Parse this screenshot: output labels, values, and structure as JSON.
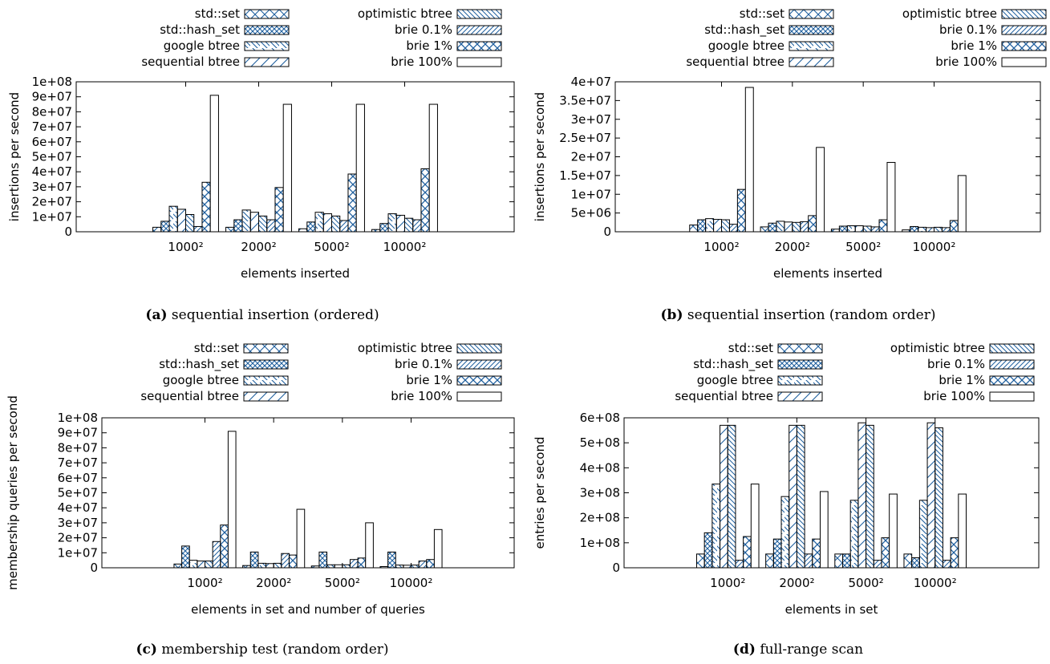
{
  "series_names": [
    "std::set",
    "std::hash_set",
    "google btree",
    "sequential btree",
    "optimistic btree",
    "brie 0.1%",
    "brie 1%",
    "brie 100%"
  ],
  "chart_data": [
    {
      "type": "bar",
      "caption_label": "(a)",
      "caption_text": "sequential insertion (ordered)",
      "xlabel": "elements inserted",
      "ylabel": "insertions per second",
      "categories": [
        "1000²",
        "2000²",
        "5000²",
        "10000²"
      ],
      "ylim": [
        0,
        100000000
      ],
      "yticks": [
        0,
        10000000,
        20000000,
        30000000,
        40000000,
        50000000,
        60000000,
        70000000,
        80000000,
        90000000,
        100000000
      ],
      "ytick_labels": [
        "0",
        "1e+07",
        "2e+07",
        "3e+07",
        "4e+07",
        "5e+07",
        "6e+07",
        "7e+07",
        "8e+07",
        "9e+07",
        "1e+08"
      ],
      "series": [
        {
          "name": "std::set",
          "values": [
            3000000,
            3000000,
            2000000,
            1500000
          ]
        },
        {
          "name": "std::hash_set",
          "values": [
            7000000,
            8000000,
            6500000,
            5500000
          ]
        },
        {
          "name": "google btree",
          "values": [
            17000000,
            14500000,
            13000000,
            12000000
          ]
        },
        {
          "name": "sequential btree",
          "values": [
            15000000,
            13000000,
            12000000,
            11000000
          ]
        },
        {
          "name": "optimistic btree",
          "values": [
            11500000,
            10500000,
            10500000,
            9000000
          ]
        },
        {
          "name": "brie 0.1%",
          "values": [
            3500000,
            8000000,
            7500000,
            8000000
          ]
        },
        {
          "name": "brie 1%",
          "values": [
            33000000,
            29500000,
            38500000,
            42000000
          ]
        },
        {
          "name": "brie 100%",
          "values": [
            91000000,
            85000000,
            85000000,
            85000000
          ]
        }
      ]
    },
    {
      "type": "bar",
      "caption_label": "(b)",
      "caption_text": "sequential insertion (random order)",
      "xlabel": "elements inserted",
      "ylabel": "insertions per second",
      "categories": [
        "1000²",
        "2000²",
        "5000²",
        "10000²"
      ],
      "ylim": [
        0,
        40000000
      ],
      "yticks": [
        0,
        5000000,
        10000000,
        15000000,
        20000000,
        25000000,
        30000000,
        35000000,
        40000000
      ],
      "ytick_labels": [
        "0",
        "5e+06",
        "1e+07",
        "1.5e+07",
        "2e+07",
        "2.5e+07",
        "3e+07",
        "3.5e+07",
        "4e+07"
      ],
      "series": [
        {
          "name": "std::set",
          "values": [
            1800000,
            1300000,
            700000,
            500000
          ]
        },
        {
          "name": "std::hash_set",
          "values": [
            3200000,
            2300000,
            1500000,
            1400000
          ]
        },
        {
          "name": "google btree",
          "values": [
            3500000,
            2800000,
            1600000,
            1200000
          ]
        },
        {
          "name": "sequential btree",
          "values": [
            3300000,
            2600000,
            1600000,
            1100000
          ]
        },
        {
          "name": "optimistic btree",
          "values": [
            3200000,
            2500000,
            1500000,
            1200000
          ]
        },
        {
          "name": "brie 0.1%",
          "values": [
            2000000,
            2700000,
            1300000,
            1100000
          ]
        },
        {
          "name": "brie 1%",
          "values": [
            11300000,
            4300000,
            3200000,
            3000000
          ]
        },
        {
          "name": "brie 100%",
          "values": [
            38500000,
            22500000,
            18500000,
            15000000
          ]
        }
      ]
    },
    {
      "type": "bar",
      "caption_label": "(c)",
      "caption_text": "membership test (random order)",
      "xlabel": "elements in set and number of queries",
      "ylabel": "membership queries per second",
      "categories": [
        "1000²",
        "2000²",
        "5000²",
        "10000²"
      ],
      "ylim": [
        0,
        100000000
      ],
      "yticks": [
        0,
        10000000,
        20000000,
        30000000,
        40000000,
        50000000,
        60000000,
        70000000,
        80000000,
        90000000,
        100000000
      ],
      "ytick_labels": [
        "0",
        "1e+07",
        "2e+07",
        "3e+07",
        "4e+07",
        "5e+07",
        "6e+07",
        "7e+07",
        "8e+07",
        "9e+07",
        "1e+08"
      ],
      "series": [
        {
          "name": "std::set",
          "values": [
            2500000,
            1500000,
            1200000,
            800000
          ]
        },
        {
          "name": "std::hash_set",
          "values": [
            14500000,
            10500000,
            10500000,
            10500000
          ]
        },
        {
          "name": "google btree",
          "values": [
            5000000,
            3000000,
            2000000,
            1800000
          ]
        },
        {
          "name": "sequential btree",
          "values": [
            4500000,
            2800000,
            2000000,
            1700000
          ]
        },
        {
          "name": "optimistic btree",
          "values": [
            4500000,
            3000000,
            2000000,
            1800000
          ]
        },
        {
          "name": "brie 0.1%",
          "values": [
            17500000,
            9500000,
            5500000,
            4500000
          ]
        },
        {
          "name": "brie 1%",
          "values": [
            28500000,
            8500000,
            6500000,
            5500000
          ]
        },
        {
          "name": "brie 100%",
          "values": [
            91000000,
            39000000,
            30000000,
            25500000
          ]
        }
      ]
    },
    {
      "type": "bar",
      "caption_label": "(d)",
      "caption_text": "full-range scan",
      "xlabel": "elements in set",
      "ylabel": "entries per second",
      "categories": [
        "1000²",
        "2000²",
        "5000²",
        "10000²"
      ],
      "ylim": [
        0,
        600000000
      ],
      "yticks": [
        0,
        100000000,
        200000000,
        300000000,
        400000000,
        500000000,
        600000000
      ],
      "ytick_labels": [
        "0",
        "1e+08",
        "2e+08",
        "3e+08",
        "4e+08",
        "5e+08",
        "6e+08"
      ],
      "series": [
        {
          "name": "std::set",
          "values": [
            55000000,
            55000000,
            55000000,
            55000000
          ]
        },
        {
          "name": "std::hash_set",
          "values": [
            140000000,
            115000000,
            55000000,
            40000000
          ]
        },
        {
          "name": "google btree",
          "values": [
            335000000,
            285000000,
            270000000,
            270000000
          ]
        },
        {
          "name": "sequential btree",
          "values": [
            570000000,
            570000000,
            580000000,
            580000000
          ]
        },
        {
          "name": "optimistic btree",
          "values": [
            570000000,
            570000000,
            570000000,
            560000000
          ]
        },
        {
          "name": "brie 0.1%",
          "values": [
            30000000,
            55000000,
            30000000,
            30000000
          ]
        },
        {
          "name": "brie 1%",
          "values": [
            125000000,
            115000000,
            120000000,
            120000000
          ]
        },
        {
          "name": "brie 100%",
          "values": [
            335000000,
            305000000,
            295000000,
            295000000
          ]
        }
      ]
    }
  ]
}
